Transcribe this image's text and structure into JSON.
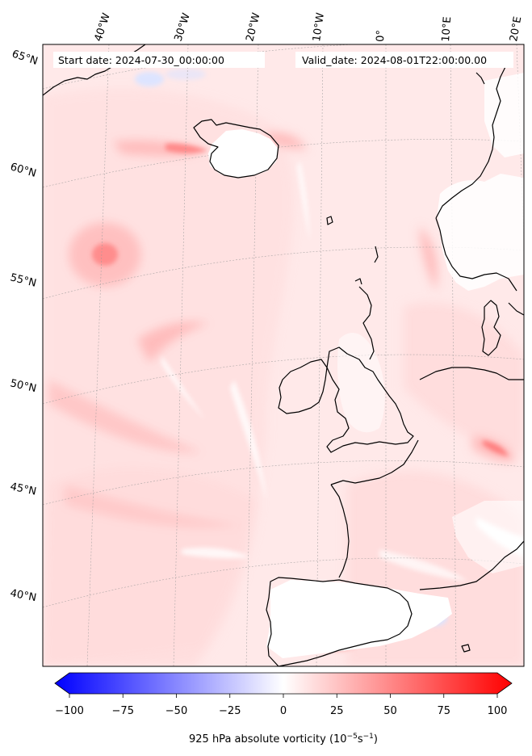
{
  "header": {
    "start_label": "Start date: 2024-07-30_00:00:00",
    "valid_label": "Valid_date: 2024-08-01T22:00:00.00"
  },
  "lon_labels": [
    "40°W",
    "30°W",
    "20°W",
    "10°W",
    "0°",
    "10°E",
    "20°E"
  ],
  "lat_labels": [
    "65°N",
    "60°N",
    "55°N",
    "50°N",
    "45°N",
    "40°N"
  ],
  "colorbar": {
    "min": -100,
    "max": 100,
    "ticks": [
      "−100",
      "−75",
      "−50",
      "−25",
      "0",
      "25",
      "50",
      "75",
      "100"
    ],
    "title_text": "925 hPa absolute vorticity (10",
    "title_exp1": "−5",
    "title_mid": "s",
    "title_exp2": "−1",
    "title_close": ")",
    "colors": {
      "negative": "#0000ff",
      "zero": "#ffffff",
      "positive": "#ff0000"
    }
  },
  "map": {
    "field_colors": {
      "background": "#ffe9e9",
      "light": "#ffdada",
      "medium": "#ffbcbc",
      "strong": "#ff7f7f",
      "white": "#ffffff",
      "blue": "#dde4ff"
    },
    "coastline_color": "#000000"
  }
}
